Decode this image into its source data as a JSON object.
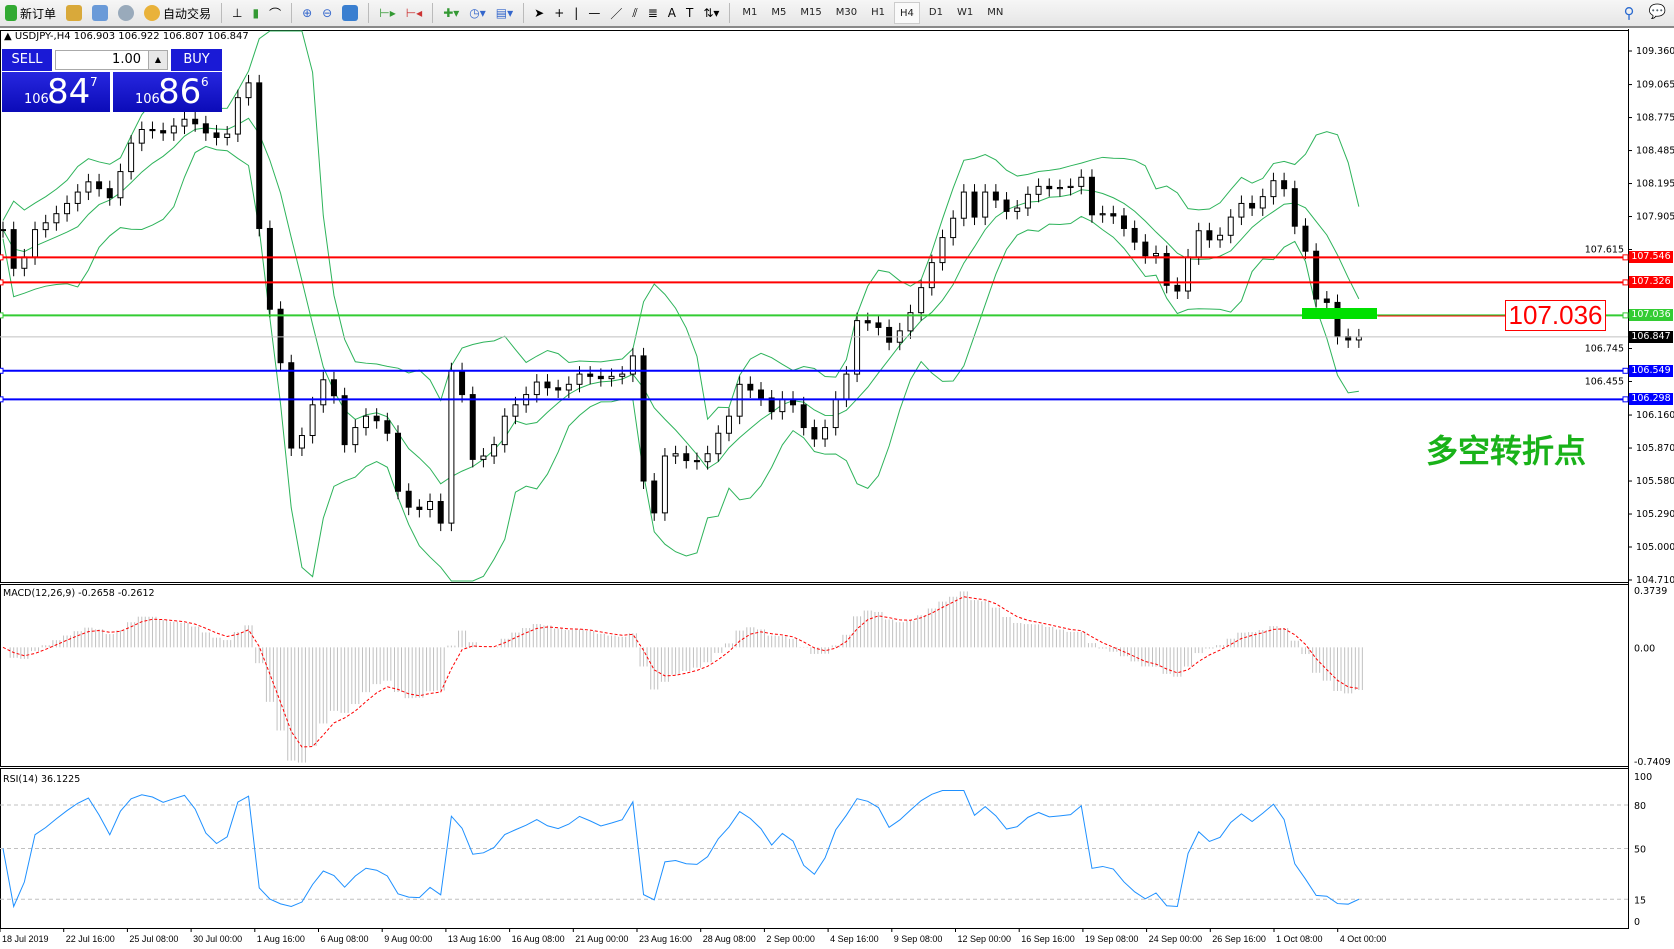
{
  "toolbar": {
    "new_order": "新订单",
    "auto_trading": "自动交易",
    "timeframes": [
      "M1",
      "M5",
      "M15",
      "M30",
      "H1",
      "H4",
      "D1",
      "W1",
      "MN"
    ],
    "active_timeframe": "H4"
  },
  "symbol_info": "USDJPY-,H4  106.903 106.922 106.807 106.847",
  "trade_panel": {
    "sell_label": "SELL",
    "buy_label": "BUY",
    "lot": "1.00",
    "sell_prefix": "106",
    "sell_big": "84",
    "sell_sup": "7",
    "buy_prefix": "106",
    "buy_big": "86",
    "buy_sup": "6"
  },
  "annotations": {
    "price_box": "107.036",
    "text": "多空转折点"
  },
  "colors": {
    "resistance": "#ff0000",
    "pivot": "#33cc33",
    "support": "#0000ff",
    "current": "#000000",
    "bands": "#2db35a",
    "macd_signal": "#ff0000",
    "rsi": "#1e90ff"
  },
  "chart_data": [
    {
      "type": "candlestick",
      "symbol": "USDJPY-",
      "timeframe": "H4",
      "ylim": [
        104.71,
        109.36
      ],
      "yticks": [
        "109.360",
        "109.065",
        "108.775",
        "108.485",
        "108.195",
        "107.905",
        "107.615",
        "106.745",
        "106.455",
        "106.160",
        "105.870",
        "105.580",
        "105.290",
        "105.000",
        "104.710"
      ],
      "xticks": [
        "18 Jul 2019",
        "22 Jul 16:00",
        "25 Jul 08:00",
        "30 Jul 00:00",
        "1 Aug 16:00",
        "6 Aug 08:00",
        "9 Aug 00:00",
        "13 Aug 16:00",
        "16 Aug 08:00",
        "21 Aug 00:00",
        "23 Aug 16:00",
        "28 Aug 08:00",
        "2 Sep 00:00",
        "4 Sep 16:00",
        "9 Sep 08:00",
        "12 Sep 00:00",
        "16 Sep 16:00",
        "19 Sep 08:00",
        "24 Sep 00:00",
        "26 Sep 16:00",
        "1 Oct 08:00",
        "4 Oct 00:00"
      ],
      "last_bar": {
        "open": 106.903,
        "high": 106.922,
        "low": 106.807,
        "close": 106.847
      },
      "close": [
        107.79,
        107.45,
        107.55,
        107.79,
        107.85,
        107.93,
        108.02,
        108.12,
        108.21,
        108.15,
        108.07,
        108.3,
        108.55,
        108.67,
        108.66,
        108.64,
        108.7,
        108.76,
        108.72,
        108.64,
        108.6,
        108.63,
        108.95,
        109.08,
        107.8,
        107.09,
        106.62,
        105.87,
        105.98,
        106.25,
        106.47,
        106.33,
        105.9,
        106.05,
        106.15,
        106.11,
        106.0,
        105.49,
        105.35,
        105.33,
        105.4,
        105.21,
        106.55,
        106.34,
        105.77,
        105.8,
        105.9,
        106.15,
        106.25,
        106.34,
        106.45,
        106.4,
        106.38,
        106.43,
        106.52,
        106.5,
        106.48,
        106.5,
        106.52,
        106.68,
        105.58,
        105.3,
        105.8,
        105.82,
        105.76,
        105.75,
        105.82,
        106.0,
        106.15,
        106.43,
        106.38,
        106.31,
        106.19,
        106.3,
        106.25,
        106.05,
        105.95,
        106.05,
        106.3,
        106.52,
        106.99,
        106.97,
        106.93,
        106.8,
        106.9,
        107.06,
        107.28,
        107.5,
        107.72,
        107.89,
        108.12,
        107.9,
        108.12,
        108.05,
        107.95,
        107.98,
        108.1,
        108.17,
        108.15,
        108.16,
        108.17,
        108.25,
        107.92,
        107.93,
        107.91,
        107.8,
        107.68,
        107.56,
        107.58,
        107.3,
        107.25,
        107.55,
        107.78,
        107.7,
        107.74,
        107.9,
        108.02,
        107.98,
        108.08,
        108.22,
        108.15,
        107.82,
        107.6,
        107.18,
        107.15,
        106.85,
        106.82,
        106.847
      ],
      "hlines": [
        {
          "price": 107.546,
          "label": "107.546",
          "color": "#ff0000"
        },
        {
          "price": 107.326,
          "label": "107.326",
          "color": "#ff0000"
        },
        {
          "price": 107.036,
          "label": "107.036",
          "color": "#33cc33"
        },
        {
          "price": 106.847,
          "label": "106.847",
          "color": "#000000"
        },
        {
          "price": 106.549,
          "label": "106.549",
          "color": "#0000ff"
        },
        {
          "price": 106.298,
          "label": "106.298",
          "color": "#0000ff"
        }
      ],
      "indicator": "Bollinger Bands"
    },
    {
      "type": "histogram+line",
      "title": "MACD(12,26,9) -0.2658 -0.2612",
      "ylim": [
        -0.7409,
        0.3739
      ],
      "yticks": [
        "0.3739",
        "0.00",
        "-0.7409"
      ]
    },
    {
      "type": "line",
      "title": "RSI(14) 36.1225",
      "ylim": [
        0,
        100
      ],
      "yticks": [
        "100",
        "80",
        "50",
        "15",
        "0"
      ],
      "levels": [
        80,
        50,
        15
      ]
    }
  ]
}
